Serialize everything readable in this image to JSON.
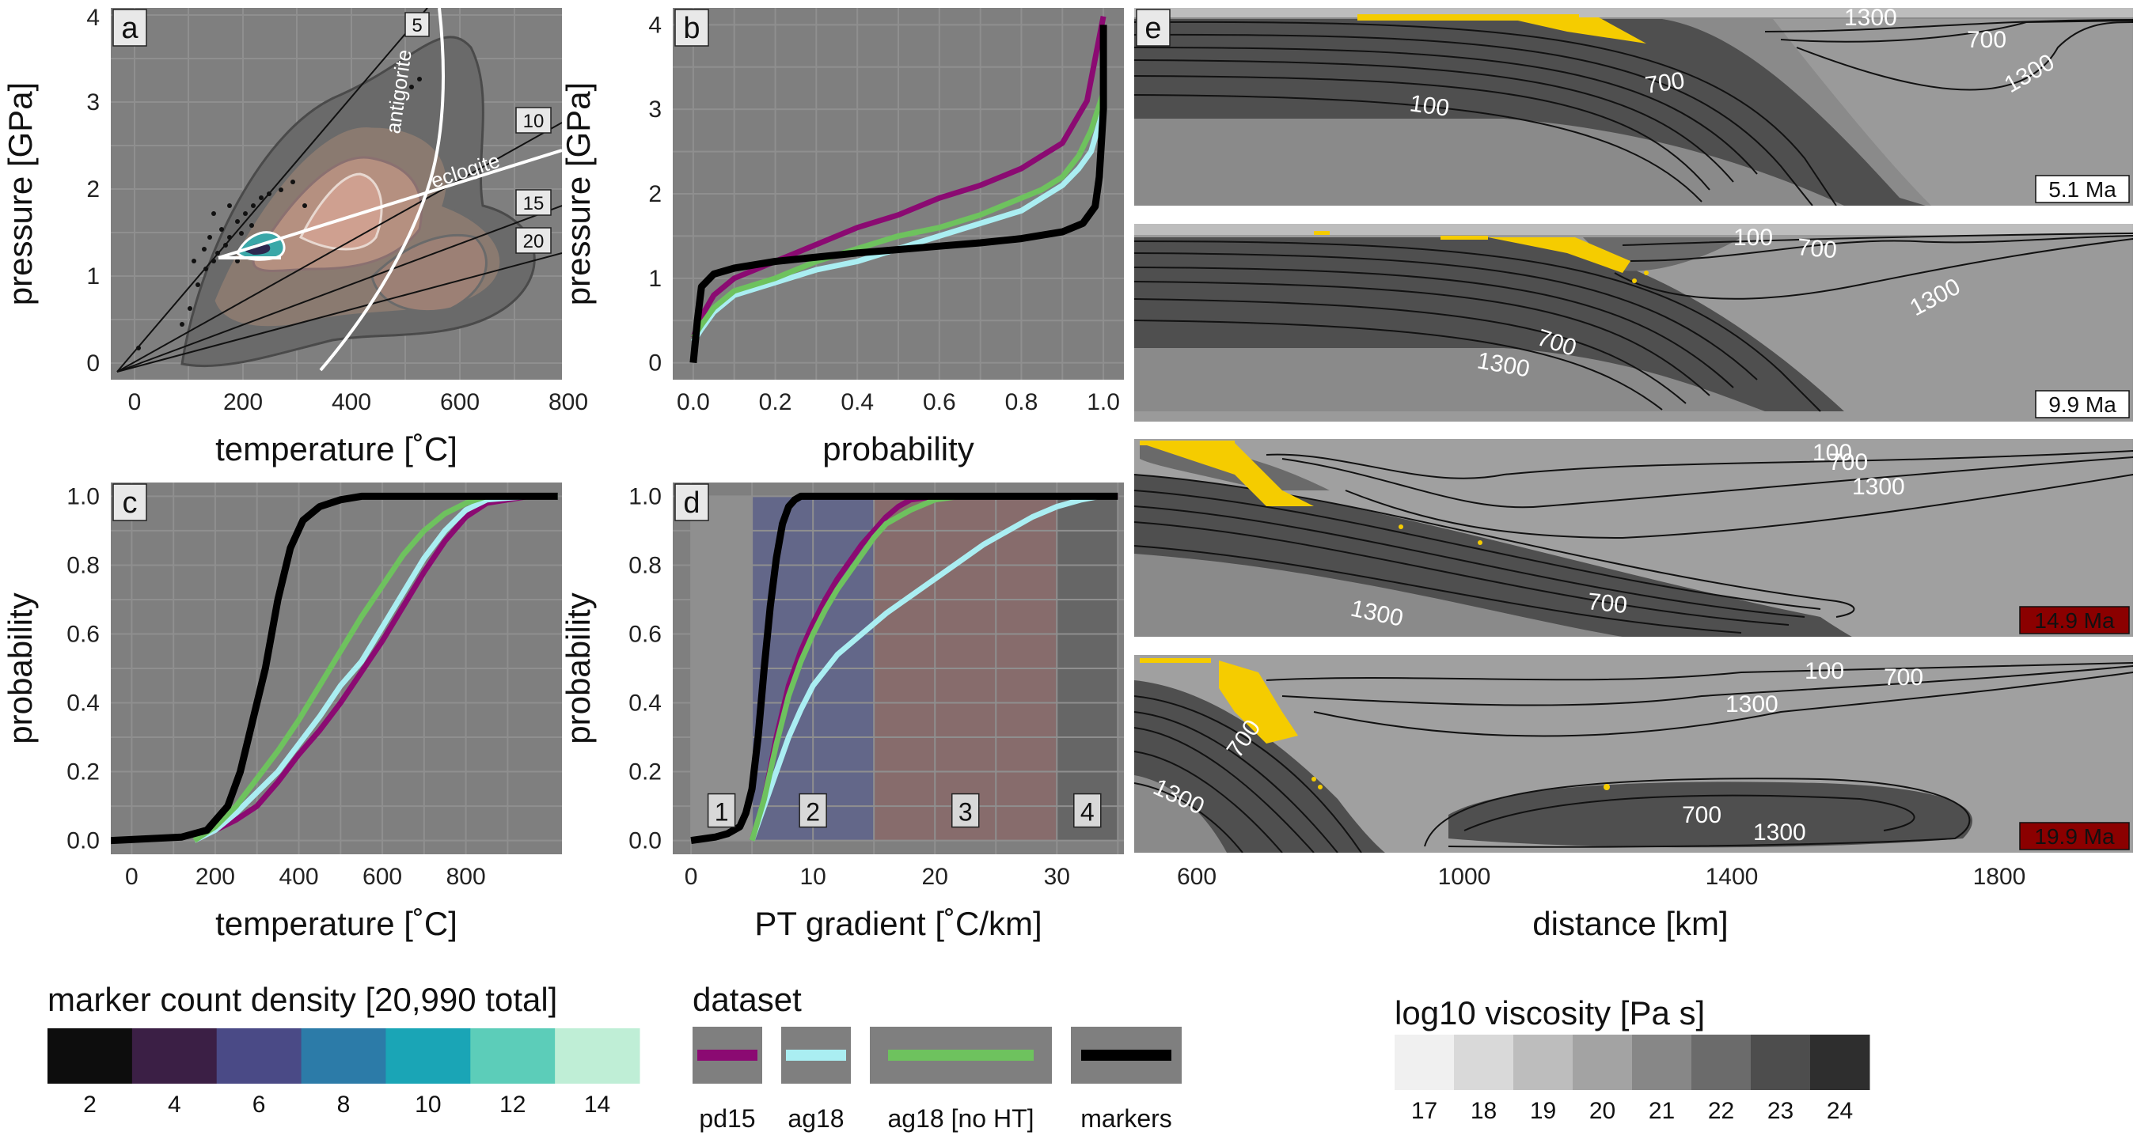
{
  "colors": {
    "panel_bg": "#7f7f7f",
    "grid": "#8f8f8f",
    "pd15": "#8b0a72",
    "ag18": "#aaeef2",
    "ag18_no_ht": "#6ec25e",
    "markers": "#000000",
    "marker_yellow": "#f5cc00",
    "label_red": "#8b0000"
  },
  "panels": {
    "a": {
      "label": "a",
      "xlabel": "temperature [˚C]",
      "ylabel": "pressure [GPa]",
      "xticks": [
        "0",
        "200",
        "400",
        "600",
        "800"
      ],
      "yticks": [
        "0",
        "1",
        "2",
        "3",
        "4"
      ],
      "curve_labels": [
        "antigorite",
        "eclogite"
      ],
      "gradient_labels": [
        "5",
        "10",
        "15",
        "20"
      ]
    },
    "b": {
      "label": "b",
      "xlabel": "probability",
      "ylabel": "pressure [GPa]",
      "xticks": [
        "0.0",
        "0.2",
        "0.4",
        "0.6",
        "0.8",
        "1.0"
      ],
      "yticks": [
        "0",
        "1",
        "2",
        "3",
        "4"
      ]
    },
    "c": {
      "label": "c",
      "xlabel": "temperature [˚C]",
      "ylabel": "probability",
      "xticks": [
        "0",
        "200",
        "400",
        "600",
        "800"
      ],
      "yticks": [
        "0.0",
        "0.2",
        "0.4",
        "0.6",
        "0.8",
        "1.0"
      ]
    },
    "d": {
      "label": "d",
      "xlabel": "PT gradient [˚C/km]",
      "ylabel": "probability",
      "xticks": [
        "0",
        "10",
        "20",
        "30"
      ],
      "yticks": [
        "0.0",
        "0.2",
        "0.4",
        "0.6",
        "0.8",
        "1.0"
      ],
      "zones": [
        "1",
        "2",
        "3",
        "4"
      ]
    },
    "e": {
      "label": "e",
      "xlabel": "distance [km]",
      "xticks": [
        "600",
        "1000",
        "1400",
        "1800"
      ],
      "snapshots": [
        {
          "age": "5.1 Ma",
          "highlight": false,
          "contours": [
            "100",
            "700",
            "1300",
            "700",
            "1300"
          ]
        },
        {
          "age": "9.9 Ma",
          "highlight": false,
          "contours": [
            "100",
            "700",
            "1300",
            "700",
            "1300"
          ]
        },
        {
          "age": "14.9 Ma",
          "highlight": true,
          "contours": [
            "100",
            "700",
            "1300",
            "1300",
            "700"
          ]
        },
        {
          "age": "19.9 Ma",
          "highlight": true,
          "contours": [
            "100",
            "700",
            "1300",
            "700",
            "1300",
            "700",
            "1300"
          ]
        }
      ]
    }
  },
  "legends": {
    "density": {
      "title": "marker count density [20,990 total]",
      "labels": [
        "2",
        "4",
        "6",
        "8",
        "10",
        "12",
        "14"
      ],
      "colors": [
        "#0d0d0d",
        "#3b1f45",
        "#4a4a86",
        "#2c7ba8",
        "#1aa5b6",
        "#5ccdb9",
        "#bfeed6"
      ]
    },
    "dataset": {
      "title": "dataset",
      "labels": [
        "pd15",
        "ag18",
        "ag18 [no HT]",
        "markers"
      ]
    },
    "viscosity": {
      "title": "log10 viscosity [Pa s]",
      "labels": [
        "17",
        "18",
        "19",
        "20",
        "21",
        "22",
        "23",
        "24"
      ],
      "colors": [
        "#f0f0f0",
        "#d9d9d9",
        "#bdbdbd",
        "#a3a3a3",
        "#878787",
        "#6b6b6b",
        "#4d4d4d",
        "#2e2e2e"
      ]
    }
  },
  "chart_data": [
    {
      "panel": "b",
      "type": "line",
      "xlabel": "probability",
      "ylabel": "pressure [GPa]",
      "xlim": [
        -0.05,
        1.05
      ],
      "ylim": [
        -0.2,
        4.2
      ],
      "series": [
        {
          "name": "pd15",
          "x": [
            0,
            0.02,
            0.05,
            0.1,
            0.2,
            0.3,
            0.4,
            0.5,
            0.6,
            0.7,
            0.8,
            0.85,
            0.9,
            0.93,
            0.96,
            0.98,
            1.0
          ],
          "y": [
            0.3,
            0.55,
            0.8,
            1.0,
            1.2,
            1.4,
            1.6,
            1.75,
            1.95,
            2.1,
            2.3,
            2.45,
            2.6,
            2.85,
            3.1,
            3.6,
            4.1
          ]
        },
        {
          "name": "ag18",
          "x": [
            0,
            0.02,
            0.05,
            0.1,
            0.2,
            0.3,
            0.4,
            0.5,
            0.6,
            0.7,
            0.8,
            0.85,
            0.9,
            0.94,
            0.97,
            1.0
          ],
          "y": [
            0.25,
            0.4,
            0.6,
            0.8,
            0.95,
            1.1,
            1.2,
            1.35,
            1.5,
            1.65,
            1.8,
            1.95,
            2.1,
            2.3,
            2.5,
            3.0
          ]
        },
        {
          "name": "ag18 [no HT]",
          "x": [
            0,
            0.02,
            0.05,
            0.1,
            0.2,
            0.3,
            0.4,
            0.5,
            0.6,
            0.7,
            0.8,
            0.85,
            0.9,
            0.94,
            0.97,
            1.0
          ],
          "y": [
            0.3,
            0.45,
            0.65,
            0.85,
            1.0,
            1.2,
            1.35,
            1.5,
            1.6,
            1.75,
            1.95,
            2.05,
            2.2,
            2.45,
            2.75,
            3.2
          ]
        },
        {
          "name": "markers",
          "x": [
            0,
            0.01,
            0.02,
            0.05,
            0.1,
            0.2,
            0.3,
            0.4,
            0.5,
            0.6,
            0.7,
            0.8,
            0.9,
            0.95,
            0.98,
            0.99,
            1.0,
            1.0
          ],
          "y": [
            0.0,
            0.5,
            0.9,
            1.05,
            1.12,
            1.2,
            1.25,
            1.3,
            1.34,
            1.38,
            1.42,
            1.47,
            1.55,
            1.65,
            1.85,
            2.2,
            3.0,
            4.0
          ]
        }
      ]
    },
    {
      "panel": "c",
      "type": "line",
      "xlabel": "temperature [˚C]",
      "ylabel": "probability",
      "xlim": [
        -50,
        1030
      ],
      "ylim": [
        -0.04,
        1.04
      ],
      "series": [
        {
          "name": "pd15",
          "x": [
            150,
            200,
            250,
            300,
            350,
            400,
            450,
            500,
            550,
            600,
            650,
            700,
            750,
            800,
            850,
            950,
            1020
          ],
          "y": [
            0,
            0.03,
            0.06,
            0.1,
            0.17,
            0.25,
            0.32,
            0.4,
            0.49,
            0.58,
            0.68,
            0.78,
            0.87,
            0.94,
            0.98,
            1.0,
            1.0
          ]
        },
        {
          "name": "ag18",
          "x": [
            150,
            200,
            250,
            300,
            350,
            400,
            450,
            500,
            550,
            600,
            650,
            700,
            750,
            800,
            850,
            950,
            1020
          ],
          "y": [
            0,
            0.03,
            0.08,
            0.14,
            0.2,
            0.28,
            0.36,
            0.45,
            0.52,
            0.62,
            0.72,
            0.82,
            0.9,
            0.96,
            0.99,
            1.0,
            1.0
          ]
        },
        {
          "name": "ag18 [no HT]",
          "x": [
            150,
            200,
            250,
            300,
            350,
            400,
            450,
            500,
            550,
            600,
            650,
            700,
            750,
            800,
            850,
            950,
            1020
          ],
          "y": [
            0,
            0.04,
            0.1,
            0.18,
            0.26,
            0.35,
            0.45,
            0.55,
            0.65,
            0.74,
            0.83,
            0.9,
            0.95,
            0.98,
            1.0,
            1.0,
            1.0
          ]
        },
        {
          "name": "markers",
          "x": [
            -50,
            120,
            180,
            230,
            260,
            290,
            320,
            350,
            380,
            410,
            450,
            500,
            550,
            600,
            650,
            700,
            800,
            1020
          ],
          "y": [
            0.0,
            0.01,
            0.03,
            0.1,
            0.2,
            0.35,
            0.5,
            0.7,
            0.85,
            0.93,
            0.97,
            0.99,
            1.0,
            1.0,
            1.0,
            1.0,
            1.0,
            1.0
          ]
        }
      ]
    },
    {
      "panel": "d",
      "type": "line",
      "xlabel": "PT gradient [˚C/km]",
      "ylabel": "probability",
      "xlim": [
        -1.5,
        35.5
      ],
      "ylim": [
        -0.04,
        1.04
      ],
      "series": [
        {
          "name": "pd15",
          "x": [
            5,
            6,
            7,
            8,
            9,
            10,
            11,
            12,
            13,
            14,
            15,
            16,
            17,
            18,
            20,
            22,
            25,
            35
          ],
          "y": [
            0,
            0.12,
            0.3,
            0.45,
            0.55,
            0.63,
            0.7,
            0.76,
            0.81,
            0.86,
            0.9,
            0.94,
            0.97,
            0.99,
            1.0,
            1.0,
            1.0,
            1.0
          ]
        },
        {
          "name": "ag18",
          "x": [
            5,
            6,
            7,
            8,
            9,
            10,
            12,
            14,
            16,
            18,
            20,
            22,
            24,
            26,
            28,
            30,
            32,
            33.5
          ],
          "y": [
            0,
            0.1,
            0.2,
            0.3,
            0.38,
            0.45,
            0.54,
            0.6,
            0.66,
            0.71,
            0.76,
            0.81,
            0.86,
            0.9,
            0.94,
            0.97,
            0.99,
            1.0
          ]
        },
        {
          "name": "ag18 [no HT]",
          "x": [
            5,
            6,
            7,
            8,
            9,
            10,
            11,
            12,
            13,
            14,
            15,
            16,
            18,
            20,
            22,
            24
          ],
          "y": [
            0,
            0.12,
            0.28,
            0.42,
            0.52,
            0.6,
            0.67,
            0.73,
            0.78,
            0.83,
            0.88,
            0.92,
            0.96,
            0.99,
            1.0,
            1.0
          ]
        },
        {
          "name": "markers",
          "x": [
            0,
            2,
            3,
            4,
            4.5,
            5,
            5.5,
            6,
            6.5,
            7,
            7.5,
            8,
            8.5,
            9,
            10,
            12,
            35
          ],
          "y": [
            0,
            0.01,
            0.02,
            0.04,
            0.08,
            0.15,
            0.3,
            0.5,
            0.68,
            0.82,
            0.92,
            0.97,
            0.99,
            1.0,
            1.0,
            1.0,
            1.0
          ]
        }
      ]
    }
  ]
}
